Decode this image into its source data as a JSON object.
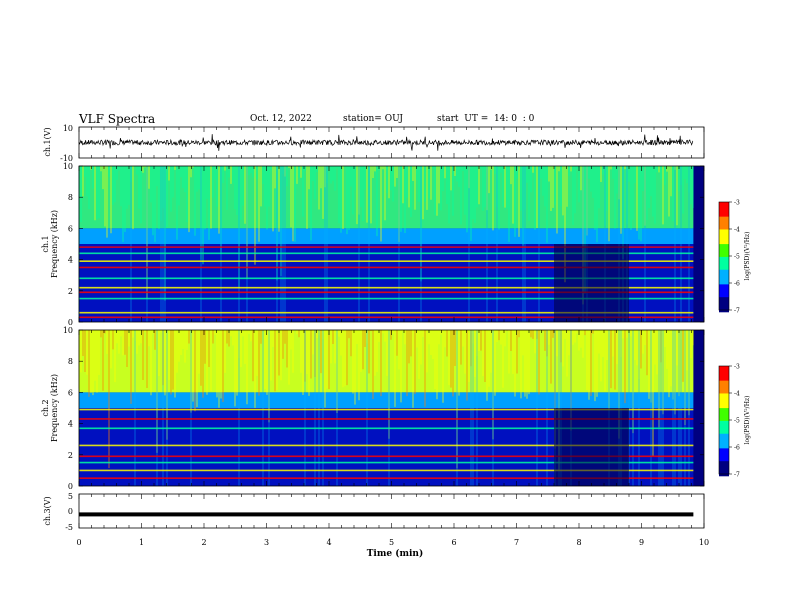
{
  "header": {
    "title": "VLF Spectra",
    "date": "Oct. 12, 2022",
    "station": "station= OUJ",
    "start": "start  UT =  14: 0  : 0"
  },
  "chart_data": [
    {
      "type": "line",
      "title": "",
      "ylabel": "ch.1(V)",
      "ylim": [
        -10,
        10
      ],
      "yticks": [
        "10",
        "-10"
      ],
      "series": [
        {
          "values": [
            -4,
            -3,
            -2,
            -1,
            0,
            1,
            2,
            3,
            4
          ]
        }
      ]
    },
    {
      "type": "heatmap",
      "ylabel_lines": [
        "ch.1",
        "Frequency  (kHz)"
      ],
      "ylim": [
        0,
        10
      ],
      "yticks": [
        "0",
        "2",
        "4",
        "6",
        "8",
        "10"
      ],
      "colorbar": {
        "label": "log(PSD)(V²/Hz)",
        "ticks": [
          "-3",
          "-4",
          "-5",
          "-6",
          "-7"
        ],
        "range": [
          -7,
          -3
        ]
      },
      "bands_khz": [
        0.3,
        0.6,
        1.5,
        1.9,
        2.2,
        2.8,
        3.5,
        3.9,
        4.4,
        4.8
      ]
    },
    {
      "type": "heatmap",
      "ylabel_lines": [
        "ch.2",
        "Frequency  (kHz)"
      ],
      "ylim": [
        0,
        10
      ],
      "yticks": [
        "0",
        "2",
        "4",
        "6",
        "8",
        "10"
      ],
      "colorbar": {
        "label": "log(PSD)(V²/Hz)",
        "ticks": [
          "-3",
          "-4",
          "-5",
          "-6",
          "-7"
        ],
        "range": [
          -7,
          -3
        ]
      },
      "bands_khz": [
        0.5,
        1.0,
        1.5,
        1.9,
        2.6,
        3.7,
        4.3,
        4.9
      ]
    },
    {
      "type": "line",
      "ylabel": "ch.3(V)",
      "ylim": [
        -5,
        5
      ],
      "yticks": [
        "5",
        "0",
        "-5"
      ],
      "series": [
        {
          "values": [
            -1,
            -1
          ]
        }
      ]
    }
  ],
  "xaxis": {
    "label": "Time  (min)",
    "range": [
      0,
      10
    ],
    "ticks": [
      "0",
      "1",
      "2",
      "3",
      "4",
      "5",
      "6",
      "7",
      "8",
      "9",
      "10"
    ],
    "data_end_min": 9.83
  },
  "colors": {
    "scale": [
      "#000080",
      "#0000ff",
      "#00b0ff",
      "#00ffa0",
      "#40ff00",
      "#ffff00",
      "#ff8000",
      "#ff0000"
    ]
  }
}
